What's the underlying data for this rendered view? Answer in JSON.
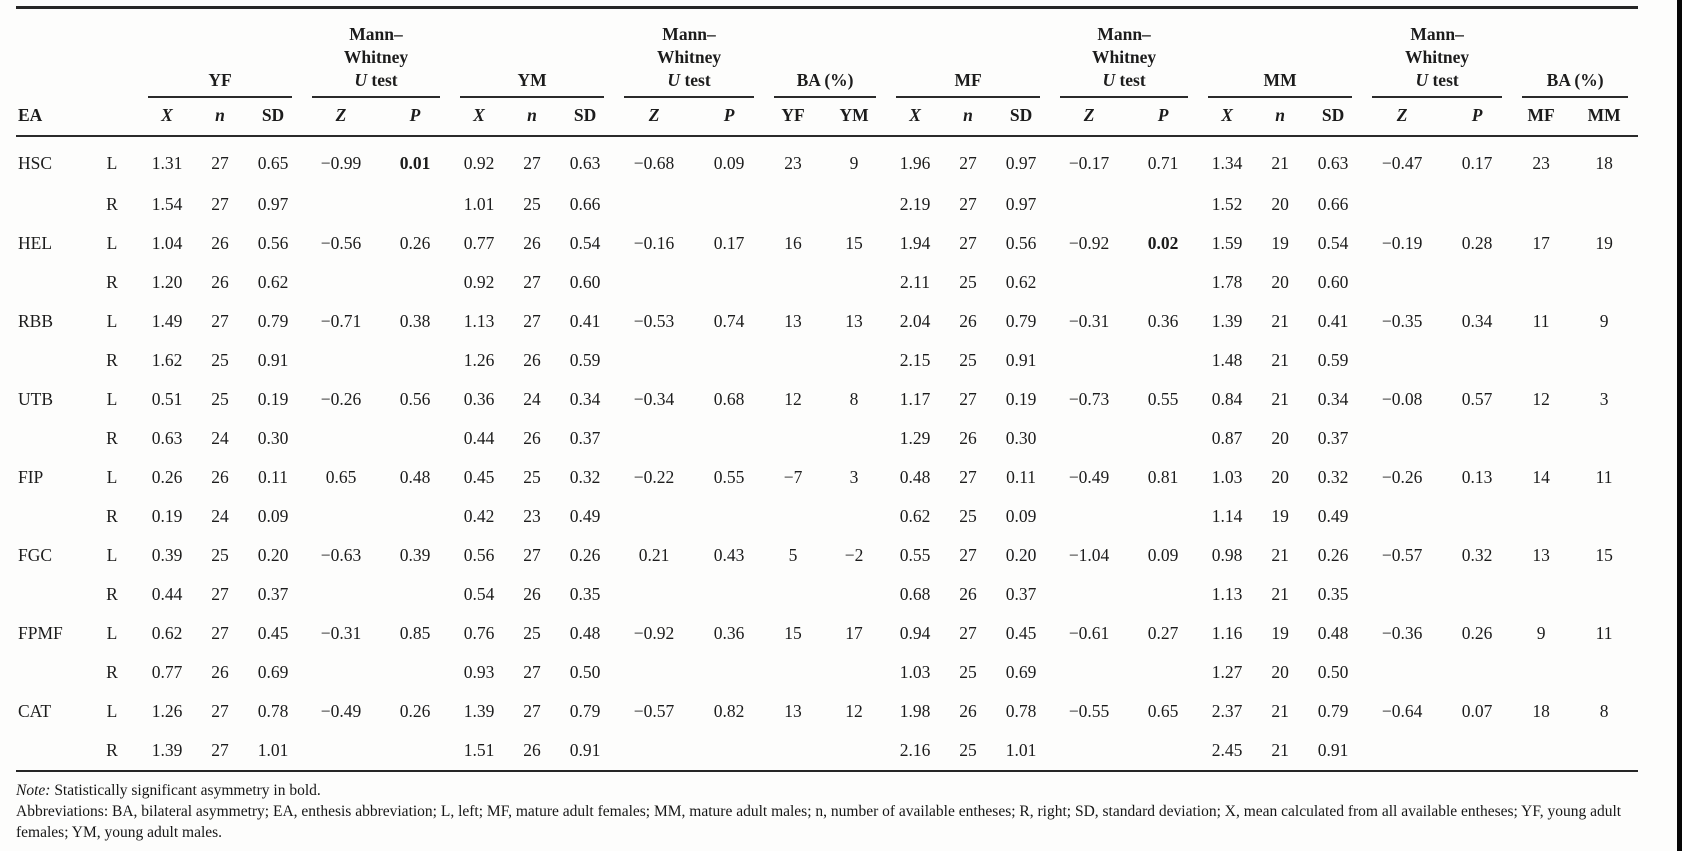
{
  "table": {
    "groups": {
      "yf": "YF",
      "ym": "YM",
      "mf": "MF",
      "mm": "MM",
      "ba": "BA (%)"
    },
    "mw": {
      "line1": "Mann–",
      "line2": "Whitney",
      "u": "U",
      "test": " test"
    },
    "sub_columns": [
      {
        "label": "EA",
        "style": "left"
      },
      {
        "label": "",
        "style": "b"
      },
      {
        "label": "X",
        "style": "bi"
      },
      {
        "label": "n",
        "style": "bi"
      },
      {
        "label": "SD",
        "style": "b"
      },
      {
        "label": "Z",
        "style": "bi"
      },
      {
        "label": "P",
        "style": "bi"
      },
      {
        "label": "X",
        "style": "bi"
      },
      {
        "label": "n",
        "style": "bi"
      },
      {
        "label": "SD",
        "style": "b"
      },
      {
        "label": "Z",
        "style": "bi"
      },
      {
        "label": "P",
        "style": "bi"
      },
      {
        "label": "YF",
        "style": "b"
      },
      {
        "label": "YM",
        "style": "b"
      },
      {
        "label": "X",
        "style": "bi"
      },
      {
        "label": "n",
        "style": "bi"
      },
      {
        "label": "SD",
        "style": "b"
      },
      {
        "label": "Z",
        "style": "bi"
      },
      {
        "label": "P",
        "style": "bi"
      },
      {
        "label": "X",
        "style": "bi"
      },
      {
        "label": "n",
        "style": "bi"
      },
      {
        "label": "SD",
        "style": "b"
      },
      {
        "label": "Z",
        "style": "bi"
      },
      {
        "label": "P",
        "style": "bi"
      },
      {
        "label": "MF",
        "style": "b"
      },
      {
        "label": "MM",
        "style": "b"
      }
    ],
    "rows": [
      [
        "HSC",
        "L",
        "1.31",
        "27",
        "0.65",
        "−0.99",
        "0.01",
        "0.92",
        "27",
        "0.63",
        "−0.68",
        "0.09",
        "23",
        "9",
        "1.96",
        "27",
        "0.97",
        "−0.17",
        "0.71",
        "1.34",
        "21",
        "0.63",
        "−0.47",
        "0.17",
        "23",
        "18"
      ],
      [
        "",
        "R",
        "1.54",
        "27",
        "0.97",
        "",
        "",
        "1.01",
        "25",
        "0.66",
        "",
        "",
        "",
        "",
        "2.19",
        "27",
        "0.97",
        "",
        "",
        "1.52",
        "20",
        "0.66",
        "",
        "",
        "",
        ""
      ],
      [
        "HEL",
        "L",
        "1.04",
        "26",
        "0.56",
        "−0.56",
        "0.26",
        "0.77",
        "26",
        "0.54",
        "−0.16",
        "0.17",
        "16",
        "15",
        "1.94",
        "27",
        "0.56",
        "−0.92",
        "0.02",
        "1.59",
        "19",
        "0.54",
        "−0.19",
        "0.28",
        "17",
        "19"
      ],
      [
        "",
        "R",
        "1.20",
        "26",
        "0.62",
        "",
        "",
        "0.92",
        "27",
        "0.60",
        "",
        "",
        "",
        "",
        "2.11",
        "25",
        "0.62",
        "",
        "",
        "1.78",
        "20",
        "0.60",
        "",
        "",
        "",
        ""
      ],
      [
        "RBB",
        "L",
        "1.49",
        "27",
        "0.79",
        "−0.71",
        "0.38",
        "1.13",
        "27",
        "0.41",
        "−0.53",
        "0.74",
        "13",
        "13",
        "2.04",
        "26",
        "0.79",
        "−0.31",
        "0.36",
        "1.39",
        "21",
        "0.41",
        "−0.35",
        "0.34",
        "11",
        "9"
      ],
      [
        "",
        "R",
        "1.62",
        "25",
        "0.91",
        "",
        "",
        "1.26",
        "26",
        "0.59",
        "",
        "",
        "",
        "",
        "2.15",
        "25",
        "0.91",
        "",
        "",
        "1.48",
        "21",
        "0.59",
        "",
        "",
        "",
        ""
      ],
      [
        "UTB",
        "L",
        "0.51",
        "25",
        "0.19",
        "−0.26",
        "0.56",
        "0.36",
        "24",
        "0.34",
        "−0.34",
        "0.68",
        "12",
        "8",
        "1.17",
        "27",
        "0.19",
        "−0.73",
        "0.55",
        "0.84",
        "21",
        "0.34",
        "−0.08",
        "0.57",
        "12",
        "3"
      ],
      [
        "",
        "R",
        "0.63",
        "24",
        "0.30",
        "",
        "",
        "0.44",
        "26",
        "0.37",
        "",
        "",
        "",
        "",
        "1.29",
        "26",
        "0.30",
        "",
        "",
        "0.87",
        "20",
        "0.37",
        "",
        "",
        "",
        ""
      ],
      [
        "FIP",
        "L",
        "0.26",
        "26",
        "0.11",
        "0.65",
        "0.48",
        "0.45",
        "25",
        "0.32",
        "−0.22",
        "0.55",
        "−7",
        "3",
        "0.48",
        "27",
        "0.11",
        "−0.49",
        "0.81",
        "1.03",
        "20",
        "0.32",
        "−0.26",
        "0.13",
        "14",
        "11"
      ],
      [
        "",
        "R",
        "0.19",
        "24",
        "0.09",
        "",
        "",
        "0.42",
        "23",
        "0.49",
        "",
        "",
        "",
        "",
        "0.62",
        "25",
        "0.09",
        "",
        "",
        "1.14",
        "19",
        "0.49",
        "",
        "",
        "",
        ""
      ],
      [
        "FGC",
        "L",
        "0.39",
        "25",
        "0.20",
        "−0.63",
        "0.39",
        "0.56",
        "27",
        "0.26",
        "0.21",
        "0.43",
        "5",
        "−2",
        "0.55",
        "27",
        "0.20",
        "−1.04",
        "0.09",
        "0.98",
        "21",
        "0.26",
        "−0.57",
        "0.32",
        "13",
        "15"
      ],
      [
        "",
        "R",
        "0.44",
        "27",
        "0.37",
        "",
        "",
        "0.54",
        "26",
        "0.35",
        "",
        "",
        "",
        "",
        "0.68",
        "26",
        "0.37",
        "",
        "",
        "1.13",
        "21",
        "0.35",
        "",
        "",
        "",
        ""
      ],
      [
        "FPMF",
        "L",
        "0.62",
        "27",
        "0.45",
        "−0.31",
        "0.85",
        "0.76",
        "25",
        "0.48",
        "−0.92",
        "0.36",
        "15",
        "17",
        "0.94",
        "27",
        "0.45",
        "−0.61",
        "0.27",
        "1.16",
        "19",
        "0.48",
        "−0.36",
        "0.26",
        "9",
        "11"
      ],
      [
        "",
        "R",
        "0.77",
        "26",
        "0.69",
        "",
        "",
        "0.93",
        "27",
        "0.50",
        "",
        "",
        "",
        "",
        "1.03",
        "25",
        "0.69",
        "",
        "",
        "1.27",
        "20",
        "0.50",
        "",
        "",
        "",
        ""
      ],
      [
        "CAT",
        "L",
        "1.26",
        "27",
        "0.78",
        "−0.49",
        "0.26",
        "1.39",
        "27",
        "0.79",
        "−0.57",
        "0.82",
        "13",
        "12",
        "1.98",
        "26",
        "0.78",
        "−0.55",
        "0.65",
        "2.37",
        "21",
        "0.79",
        "−0.64",
        "0.07",
        "18",
        "8"
      ],
      [
        "",
        "R",
        "1.39",
        "27",
        "1.01",
        "",
        "",
        "1.51",
        "26",
        "0.91",
        "",
        "",
        "",
        "",
        "2.16",
        "25",
        "1.01",
        "",
        "",
        "2.45",
        "21",
        "0.91",
        "",
        "",
        "",
        ""
      ]
    ],
    "bold_cells": [
      [
        0,
        6
      ],
      [
        2,
        18
      ]
    ]
  },
  "notes": {
    "note_label": "Note: ",
    "note_text": "Statistically significant asymmetry in bold.",
    "abbreviations": "Abbreviations: BA, bilateral asymmetry; EA, enthesis abbreviation; L, left; MF, mature adult females; MM, mature adult males; n, number of available entheses; R, right; SD, standard deviation; X, mean calculated from all available entheses; YF, young adult females; YM, young adult males."
  }
}
